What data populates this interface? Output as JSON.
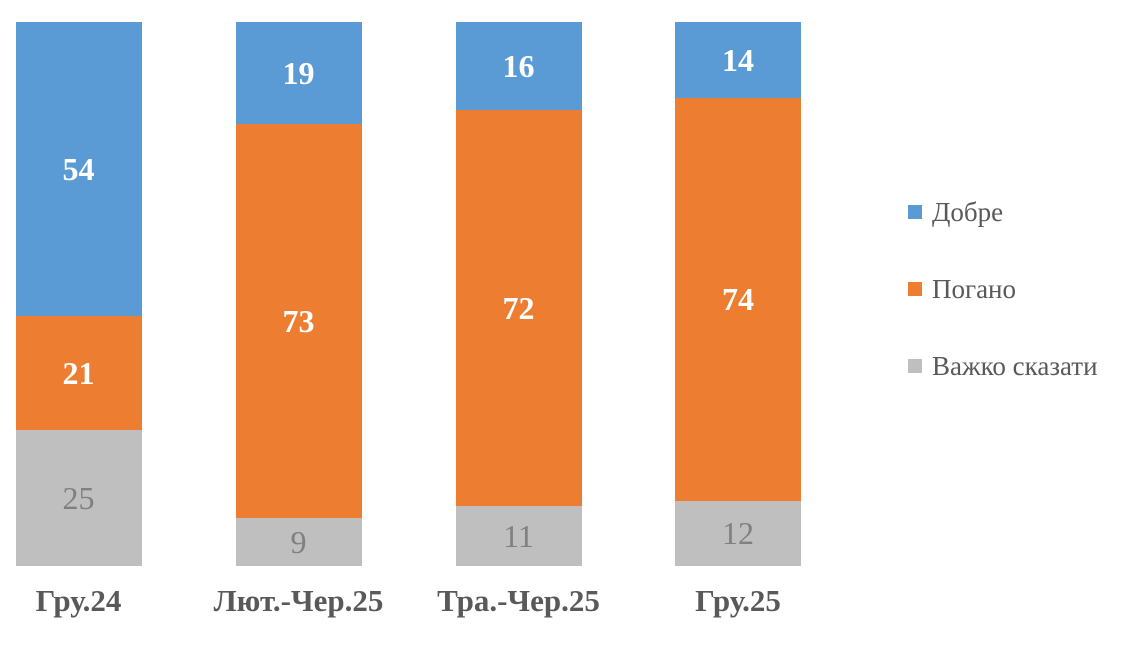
{
  "chart_data": {
    "type": "bar",
    "stacked": true,
    "orientation": "vertical",
    "title": "",
    "xlabel": "",
    "ylabel": "",
    "grid": false,
    "background": "#FFFFFF",
    "categories": [
      "Гру.24",
      "Лют.-Чер.25",
      "Тра.-Чер.25",
      "Гру.25"
    ],
    "series": [
      {
        "name": "Добре",
        "color": "#5B9BD5",
        "values": [
          54,
          19,
          16,
          14
        ],
        "label_color": "#FFFFFF"
      },
      {
        "name": "Погано",
        "color": "#ED7D31",
        "values": [
          21,
          73,
          72,
          74
        ],
        "label_color": "#FFFFFF"
      },
      {
        "name": "Важко сказати",
        "color": "#BFBFBF",
        "values": [
          25,
          9,
          11,
          12
        ],
        "label_color": "#808080"
      }
    ],
    "legend": {
      "position": "right",
      "entries": [
        "Добре",
        "Погано",
        "Важко сказати"
      ]
    },
    "category_label_color": "#595959",
    "legend_text_color": "#595959"
  }
}
